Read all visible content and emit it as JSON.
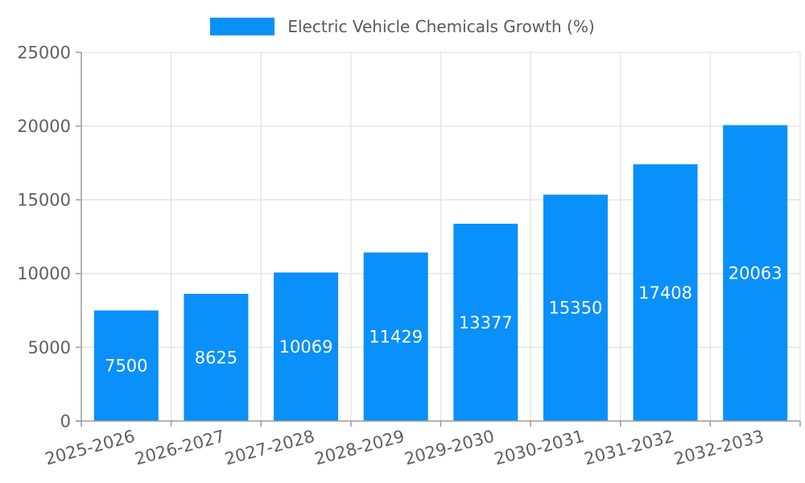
{
  "legend": {
    "label": "Electric Vehicle Chemicals Growth (%)",
    "position": "top-center"
  },
  "chart_data": {
    "type": "bar",
    "title": "Electric Vehicle Chemicals Growth (%)",
    "series_name": "Electric Vehicle Chemicals Growth (%)",
    "categories": [
      "2025-2026",
      "2026-2027",
      "2027-2028",
      "2028-2029",
      "2029-2030",
      "2030-2031",
      "2031-2032",
      "2032-2033"
    ],
    "values": [
      7500,
      8625,
      10069,
      11429,
      13377,
      15350,
      17408,
      20063
    ],
    "xlabel": "",
    "ylabel": "",
    "ylim": [
      0,
      25000
    ],
    "yticks": [
      0,
      5000,
      10000,
      15000,
      20000,
      25000
    ],
    "grid": true,
    "legend_position": "top-center",
    "bar_color": "#0a90fa",
    "value_label_color": "#ffffff",
    "tick_label_color": "#606060",
    "grid_color": "#e3e3e3",
    "axis_color": "#9b9b9b",
    "x_label_rotation_deg": -15
  }
}
